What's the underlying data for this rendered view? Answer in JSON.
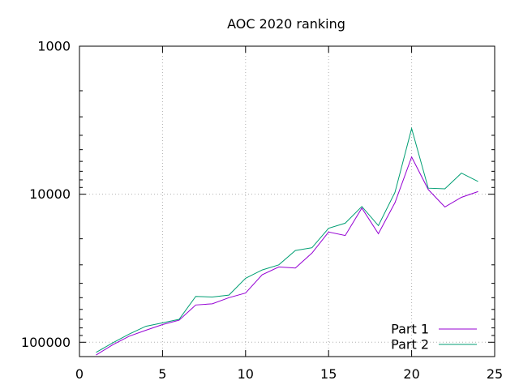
{
  "chart_data": {
    "type": "line",
    "title": "AOC 2020 ranking",
    "xlabel": "",
    "ylabel": "",
    "x_scale": "linear",
    "y_scale": "log",
    "y_reversed": true,
    "xlim": [
      0,
      25
    ],
    "ylim": [
      1000,
      125000
    ],
    "xticks": [
      0,
      5,
      10,
      15,
      20,
      25
    ],
    "xtick_labels": [
      "0",
      "5",
      "10",
      "15",
      "20",
      "25"
    ],
    "yticks": [
      1000,
      10000,
      100000
    ],
    "ytick_labels": [
      "1000",
      "10000",
      "100000"
    ],
    "grid": true,
    "legend_position": "bottom-right",
    "x": [
      1,
      2,
      3,
      4,
      5,
      6,
      7,
      8,
      9,
      10,
      11,
      12,
      13,
      14,
      15,
      16,
      17,
      18,
      19,
      20,
      21,
      22,
      23,
      24
    ],
    "series": [
      {
        "name": "Part 1",
        "color": "#9400d3",
        "values": [
          122000,
          104000,
          91000,
          83000,
          76000,
          71000,
          56000,
          55000,
          50000,
          46500,
          35000,
          31000,
          31500,
          25000,
          18000,
          19000,
          12400,
          18500,
          11400,
          5600,
          9300,
          12200,
          10500,
          9600
        ]
      },
      {
        "name": "Part 2",
        "color": "#009e73",
        "values": [
          117000,
          101000,
          88000,
          78000,
          74000,
          70000,
          49000,
          49500,
          48000,
          37000,
          32500,
          30000,
          24000,
          23000,
          17000,
          15700,
          12100,
          16300,
          9700,
          3600,
          9100,
          9200,
          7200,
          8200
        ]
      }
    ]
  }
}
